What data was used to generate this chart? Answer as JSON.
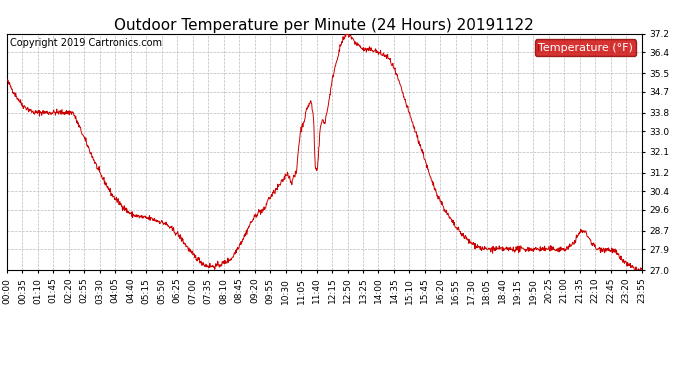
{
  "title": "Outdoor Temperature per Minute (24 Hours) 20191122",
  "copyright_text": "Copyright 2019 Cartronics.com",
  "legend_label": "Temperature (°F)",
  "line_color": "#cc0000",
  "background_color": "#ffffff",
  "plot_background_color": "#ffffff",
  "grid_color": "#bbbbbb",
  "legend_bg_color": "#cc0000",
  "legend_text_color": "#ffffff",
  "ylim": [
    27.0,
    37.2
  ],
  "yticks": [
    27.0,
    27.9,
    28.7,
    29.6,
    30.4,
    31.2,
    32.1,
    33.0,
    33.8,
    34.7,
    35.5,
    36.4,
    37.2
  ],
  "xtick_labels": [
    "00:00",
    "00:35",
    "01:10",
    "01:45",
    "02:20",
    "02:55",
    "03:30",
    "04:05",
    "04:40",
    "05:15",
    "05:50",
    "06:25",
    "07:00",
    "07:35",
    "08:10",
    "08:45",
    "09:20",
    "09:55",
    "10:30",
    "11:05",
    "11:40",
    "12:15",
    "12:50",
    "13:25",
    "14:00",
    "14:35",
    "15:10",
    "15:45",
    "16:20",
    "16:55",
    "17:30",
    "18:05",
    "18:40",
    "19:15",
    "19:50",
    "20:25",
    "21:00",
    "21:35",
    "22:10",
    "22:45",
    "23:20",
    "23:55"
  ],
  "title_fontsize": 11,
  "axis_fontsize": 6.5,
  "copyright_fontsize": 7
}
